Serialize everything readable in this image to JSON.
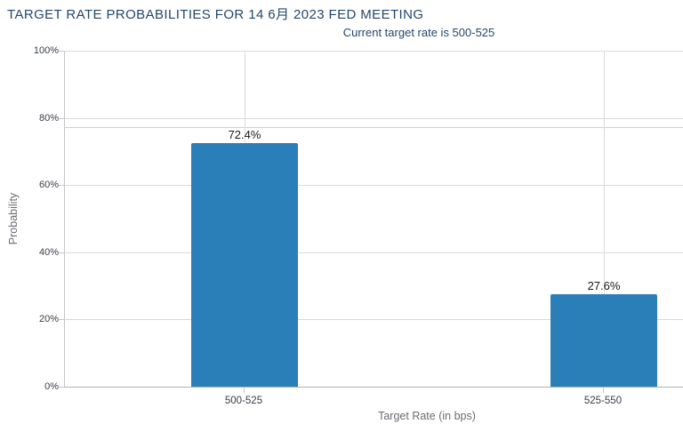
{
  "chart_data": {
    "type": "bar",
    "title": "TARGET RATE PROBABILITIES FOR 14 6月 2023 FED MEETING",
    "subtitle": "Current target rate is 500-525",
    "categories": [
      "500-525",
      "525-550"
    ],
    "values": [
      72.4,
      27.6
    ],
    "bar_labels": [
      "72.4%",
      "27.6%"
    ],
    "xlabel": "Target Rate (in bps)",
    "ylabel": "Probability",
    "ylim": [
      0,
      100
    ],
    "yticks": [
      0,
      20,
      40,
      60,
      80,
      100
    ],
    "ytick_labels": [
      "0%",
      "20%",
      "40%",
      "60%",
      "80%",
      "100%"
    ],
    "grid": true,
    "legend": "none",
    "annotations": [
      {
        "type": "hline",
        "value": 77.2
      }
    ],
    "colors": {
      "bar": "#2b7fb8",
      "title_text": "#25476b",
      "tick_text": "#383e45",
      "axis_title_text": "#6b6b72",
      "gridline": "#d9d9d9",
      "axis_line": "#b1b1b6"
    }
  }
}
